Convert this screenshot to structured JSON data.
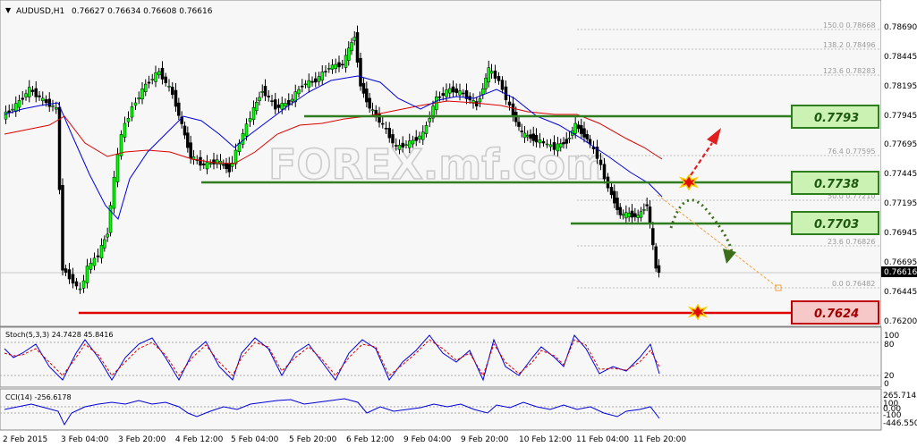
{
  "header": {
    "symbol_label": "AUDUSD,H1",
    "ohlc": "0.76627 0.76634 0.76608 0.76616"
  },
  "watermark": "FOREX.mf.com",
  "current_price": "0.76616",
  "price_axis": [
    "0.78690",
    "0.78445",
    "0.78195",
    "0.77945",
    "0.77695",
    "0.77445",
    "0.77195",
    "0.76945",
    "0.76695",
    "0.76445",
    "0.76200"
  ],
  "fib_levels": [
    {
      "label": "150.0 0.78668"
    },
    {
      "label": "138.2 0.78496"
    },
    {
      "label": "123.6 0.78283"
    },
    {
      "label": "76.4 0.77595"
    },
    {
      "label": "50.0 0.77210"
    },
    {
      "label": "23.6 0.76826"
    },
    {
      "label": "0.0 0.76482"
    }
  ],
  "level_boxes": [
    {
      "label": "0.7793",
      "kind": "resistance"
    },
    {
      "label": "0.7738",
      "kind": "resistance"
    },
    {
      "label": "0.7703",
      "kind": "resistance"
    },
    {
      "label": "0.7624",
      "kind": "support"
    }
  ],
  "stoch": {
    "header": "Stoch(5,3,3) 24.7428 45.8416",
    "axis": [
      "100",
      "80",
      "20",
      "0"
    ]
  },
  "cci": {
    "header": "CCI(14) -256.6178",
    "axis": [
      "265.7142",
      "100",
      "0.00",
      "-100",
      "-446.5501"
    ]
  },
  "time_axis": [
    "2 Feb 2015",
    "3 Feb 04:00",
    "3 Feb 20:00",
    "4 Feb 12:00",
    "5 Feb 04:00",
    "5 Feb 20:00",
    "6 Feb 12:00",
    "9 Feb 04:00",
    "9 Feb 20:00",
    "10 Feb 12:00",
    "11 Feb 04:00",
    "11 Feb 20:00"
  ],
  "colors": {
    "bull": "#00ff00",
    "resistance_line": "#2e7d1e",
    "support_line": "#e00000",
    "resistance_box": "#ccf2b3",
    "support_box": "#f6c8c8",
    "ma_fast": "#0000dd",
    "ma_slow": "#dd0000"
  }
}
